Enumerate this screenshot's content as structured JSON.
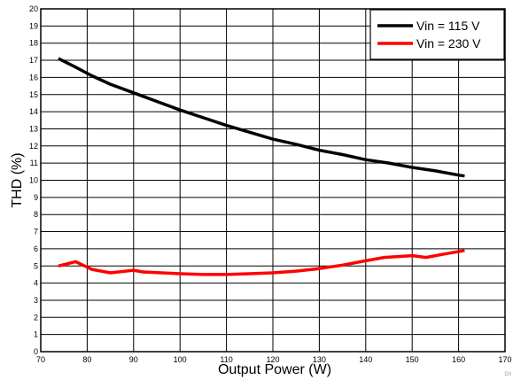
{
  "chart_data": {
    "type": "line",
    "title": "",
    "xlabel": "Output Power (W)",
    "ylabel": "THD (%)",
    "xlim": [
      70,
      170
    ],
    "ylim": [
      0,
      20
    ],
    "xticks": [
      70,
      80,
      90,
      100,
      110,
      120,
      130,
      140,
      150,
      160,
      170
    ],
    "yticks": [
      0,
      1,
      2,
      3,
      4,
      5,
      6,
      7,
      8,
      9,
      10,
      11,
      12,
      13,
      14,
      15,
      16,
      17,
      18,
      19,
      20
    ],
    "grid": true,
    "legend_position": "top-right",
    "series": [
      {
        "name": "Vin = 115 V",
        "color": "#000000",
        "x": [
          73.8,
          77.5,
          81,
          85,
          90,
          95,
          100,
          105,
          110,
          115,
          120,
          125,
          130,
          135,
          140,
          145,
          150,
          155,
          160,
          161.3
        ],
        "y": [
          17.1,
          16.6,
          16.1,
          15.6,
          15.1,
          14.6,
          14.1,
          13.65,
          13.2,
          12.8,
          12.4,
          12.1,
          11.75,
          11.5,
          11.2,
          11.0,
          10.75,
          10.55,
          10.3,
          10.25
        ]
      },
      {
        "name": "Vin = 230 V",
        "color": "#ff0000",
        "x": [
          73.8,
          77.5,
          81,
          85,
          90,
          92,
          100,
          105,
          110,
          115,
          120,
          125,
          130,
          135,
          140,
          144,
          150,
          153,
          157,
          161.3
        ],
        "y": [
          5.0,
          5.25,
          4.8,
          4.6,
          4.75,
          4.65,
          4.55,
          4.5,
          4.5,
          4.55,
          4.6,
          4.7,
          4.85,
          5.05,
          5.3,
          5.5,
          5.6,
          5.5,
          5.7,
          5.9
        ]
      }
    ]
  },
  "corner_tag": "D0"
}
